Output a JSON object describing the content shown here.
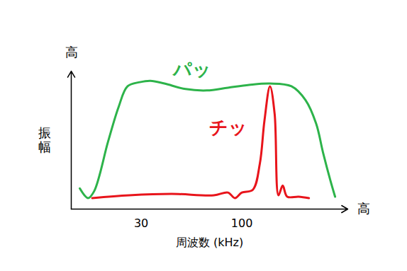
{
  "chart_data": {
    "type": "line",
    "x_label": "周波数 (kHz)",
    "y_label": "振幅",
    "axis_end_labels": {
      "x": "高",
      "y": "高"
    },
    "log": "x",
    "xlim": [
      13,
      355
    ],
    "xticks": [
      30,
      100
    ],
    "ylim": [
      0,
      100
    ],
    "yticks": [],
    "tick_labels": "x",
    "grid": false,
    "series": [
      {
        "name": "パッ",
        "color": "#2db34a",
        "label_x": 55,
        "label_y": 101,
        "x": [
          14.4,
          15.9,
          17.1,
          20.2,
          22.9,
          25.5,
          29.5,
          33.5,
          39.6,
          51,
          65.8,
          84.7,
          109,
          140,
          181,
          214,
          243,
          264,
          288,
          305
        ],
        "values": [
          15,
          8,
          13,
          49,
          74,
          89,
          92,
          93,
          91,
          87,
          86,
          88,
          90,
          91,
          89,
          79,
          62,
          41,
          21,
          9
        ]
      },
      {
        "name": "チッ",
        "color": "#e8141b",
        "label_x": 84.7,
        "label_y": 59,
        "x": [
          16.7,
          26,
          43.2,
          71.5,
          84.7,
          92,
          100,
          114,
          124,
          131,
          140,
          148,
          155,
          163,
          172,
          197,
          223
        ],
        "values": [
          8,
          10,
          11,
          10,
          12,
          8,
          12,
          14,
          33,
          64,
          89,
          69,
          10,
          17,
          9,
          9,
          8
        ]
      }
    ]
  }
}
